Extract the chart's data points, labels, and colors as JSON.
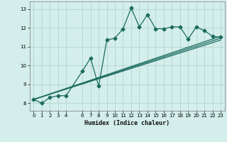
{
  "xlabel": "Humidex (Indice chaleur)",
  "bg_color": "#d4eeeb",
  "grid_color": "#b8d8d4",
  "line_color": "#1a6b5e",
  "xlim": [
    -0.5,
    23.5
  ],
  "ylim": [
    7.6,
    13.4
  ],
  "xticks": [
    0,
    1,
    2,
    3,
    4,
    6,
    7,
    8,
    9,
    10,
    11,
    12,
    13,
    14,
    15,
    16,
    17,
    18,
    19,
    20,
    21,
    22,
    23
  ],
  "yticks": [
    8,
    9,
    10,
    11,
    12,
    13
  ],
  "series1_x": [
    0,
    1,
    2,
    3,
    4,
    6,
    7,
    8,
    9,
    10,
    11,
    12,
    13,
    14,
    15,
    16,
    17,
    18,
    19,
    20,
    21,
    22,
    23
  ],
  "series1_y": [
    8.2,
    8.0,
    8.3,
    8.4,
    8.4,
    9.7,
    10.4,
    8.9,
    11.35,
    11.45,
    11.95,
    13.05,
    12.05,
    12.7,
    11.95,
    11.95,
    12.05,
    12.05,
    11.4,
    12.05,
    11.85,
    11.55,
    11.5
  ],
  "series2_x": [
    0,
    23
  ],
  "series2_y": [
    8.2,
    11.55
  ],
  "series3_x": [
    0,
    23
  ],
  "series3_y": [
    8.2,
    11.45
  ],
  "series4_x": [
    0,
    23
  ],
  "series4_y": [
    8.2,
    11.35
  ],
  "marker_size": 2.5,
  "line_width": 0.9
}
